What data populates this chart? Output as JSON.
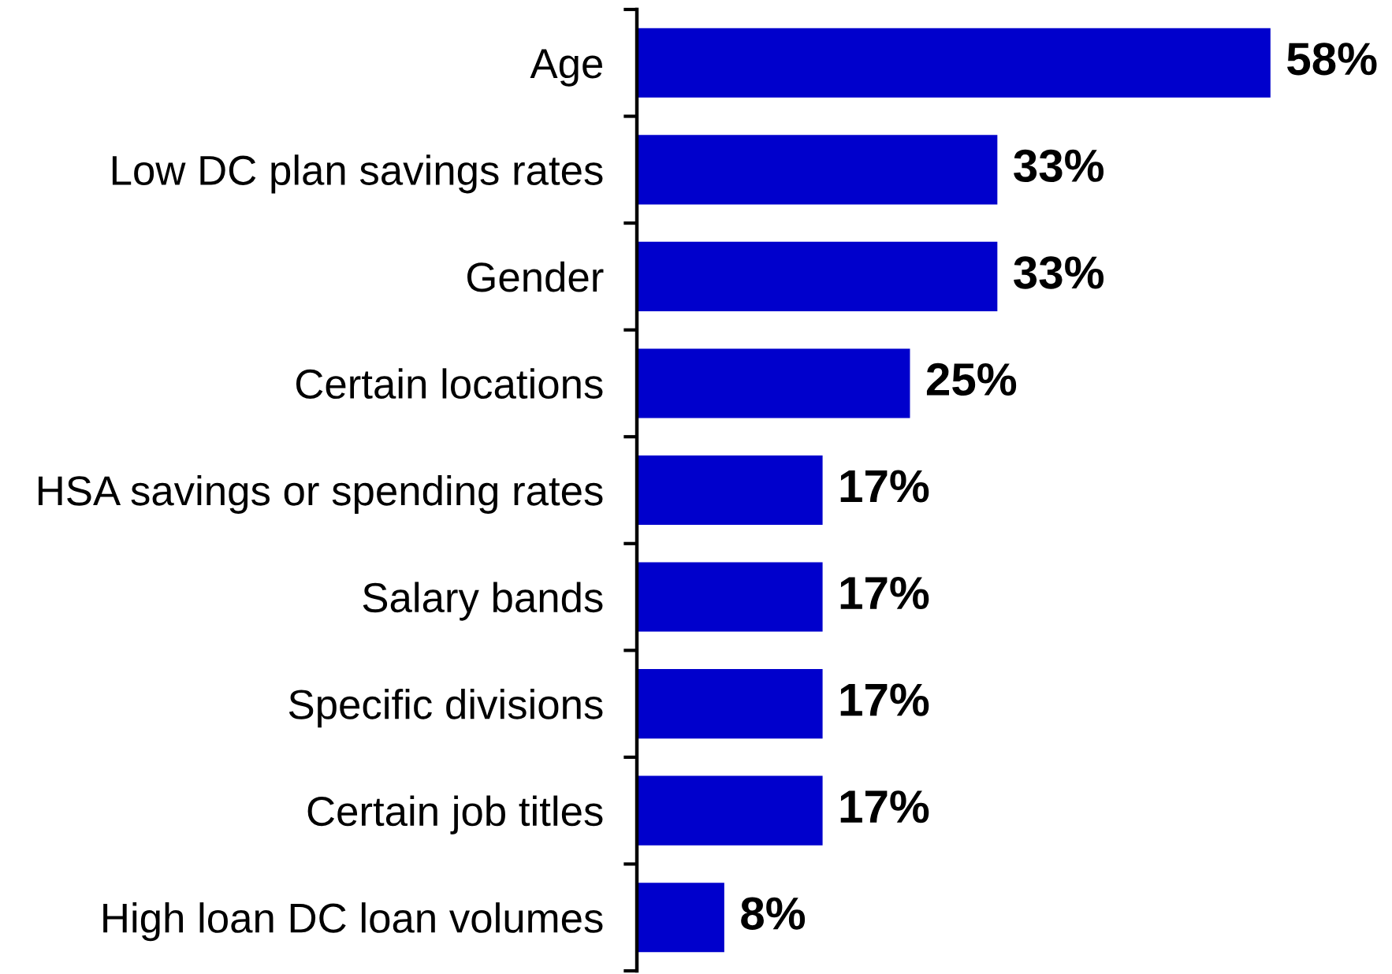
{
  "chart_data": {
    "type": "bar",
    "orientation": "horizontal",
    "categories": [
      "Age",
      "Low DC plan savings rates",
      "Gender",
      "Certain locations",
      "HSA savings or spending rates",
      "Salary bands",
      "Specific divisions",
      "Certain job titles",
      "High loan DC loan volumes"
    ],
    "values": [
      58,
      33,
      33,
      25,
      17,
      17,
      17,
      17,
      8
    ],
    "value_labels": [
      "58%",
      "33%",
      "33%",
      "25%",
      "17%",
      "17%",
      "17%",
      "17%",
      "8%"
    ],
    "color": "#0000cc",
    "tick_labels": "y"
  }
}
